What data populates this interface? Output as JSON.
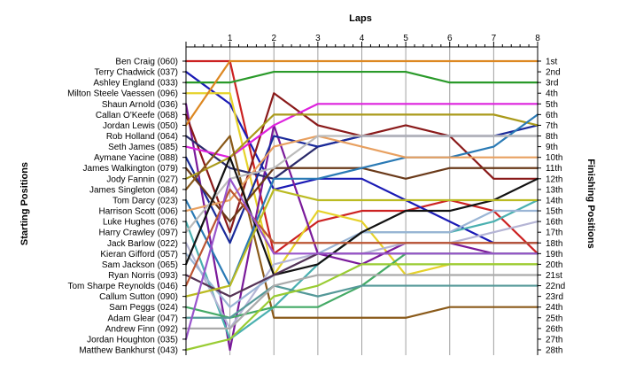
{
  "chart_data": {
    "type": "line",
    "title": "",
    "xlabel": "Laps",
    "ylabel_left": "Starting Positions",
    "ylabel_right": "Finishing Positions",
    "x_ticks": [
      "1",
      "2",
      "3",
      "4",
      "5",
      "6",
      "7",
      "8"
    ],
    "x_range": [
      0,
      8
    ],
    "y_range": [
      1,
      28
    ],
    "y_reversed": true,
    "grid": true,
    "starting_labels": [
      "Ben Craig (060)",
      "Terry Chadwick (037)",
      "Ashley England (033)",
      "Milton Steele Vaessen (096)",
      "Shaun Arnold (036)",
      "Callan O'Keefe (068)",
      "Jordan Lewis (050)",
      "Rob Holland (064)",
      "Seth James (085)",
      "Aymane Yacine (088)",
      "James Walkington (079)",
      "Jody Fannin (027)",
      "James Singleton (084)",
      "Tom Darcy (023)",
      "Harrison Scott (006)",
      "Luke Hughes (076)",
      "Harry Crawley (097)",
      "Jack Barlow (022)",
      "Kieran Gifford (057)",
      "Sam Jackson (065)",
      "Ryan Norris (093)",
      "Tom Sharpe Reynolds (046)",
      "Callum Sutton (090)",
      "Sam Peggs (024)",
      "Adam Glear (047)",
      "Andrew Finn (092)",
      "Jordan Houghton (035)",
      "Matthew Bankhurst (043)"
    ],
    "finishing_labels": [
      "1st",
      "2nd",
      "3rd",
      "4th",
      "5th",
      "6th",
      "7th",
      "8th",
      "9th",
      "10th",
      "11th",
      "12th",
      "13th",
      "14th",
      "15th",
      "16th",
      "17th",
      "18th",
      "19th",
      "20th",
      "21st",
      "22nd",
      "23rd",
      "24th",
      "25th",
      "26th",
      "27th",
      "28th"
    ],
    "series": [
      {
        "color": "#cc2222",
        "values": [
          1,
          1,
          19,
          16,
          15,
          15,
          14,
          15,
          19
        ]
      },
      {
        "color": "#1a1ab5",
        "values": [
          2,
          5,
          13,
          12,
          12,
          14,
          16,
          18,
          18
        ]
      },
      {
        "color": "#2a9a2a",
        "values": [
          3,
          3,
          2,
          2,
          2,
          2,
          3,
          3,
          3
        ]
      },
      {
        "color": "#e6d22a",
        "values": [
          4,
          4,
          21,
          15,
          16,
          21,
          20,
          20,
          20
        ]
      },
      {
        "color": "#7a1a9a",
        "values": [
          5,
          28,
          7,
          19,
          20,
          18,
          18,
          19,
          19
        ]
      },
      {
        "color": "#8a1a1a",
        "values": [
          6,
          17,
          4,
          7,
          8,
          7,
          8,
          12,
          12
        ]
      },
      {
        "color": "#dd8822",
        "values": [
          7,
          1,
          1,
          1,
          1,
          1,
          1,
          1,
          1
        ]
      },
      {
        "color": "#2a2a6a",
        "values": [
          8,
          11,
          12,
          9,
          8,
          8,
          8,
          8,
          8
        ]
      },
      {
        "color": "#dd22dd",
        "values": [
          9,
          10,
          7,
          5,
          5,
          5,
          5,
          5,
          5
        ]
      },
      {
        "color": "#1a2a9a",
        "values": [
          10,
          18,
          8,
          9,
          8,
          8,
          8,
          8,
          7
        ]
      },
      {
        "color": "#6a3a1a",
        "values": [
          11,
          16,
          11,
          11,
          11,
          12,
          11,
          11,
          11
        ]
      },
      {
        "color": "#aa9a1a",
        "values": [
          12,
          10,
          6,
          6,
          6,
          6,
          6,
          6,
          7
        ]
      },
      {
        "color": "#8a5a1a",
        "values": [
          13,
          8,
          25,
          25,
          25,
          25,
          24,
          24,
          24
        ]
      },
      {
        "color": "#2a7ab5",
        "values": [
          14,
          22,
          12,
          12,
          11,
          10,
          10,
          9,
          6
        ]
      },
      {
        "color": "#e8a060",
        "values": [
          15,
          14,
          9,
          8,
          9,
          10,
          10,
          10,
          10
        ]
      },
      {
        "color": "#4ab0b0",
        "values": [
          16,
          27,
          24,
          20,
          17,
          17,
          17,
          16,
          14
        ]
      },
      {
        "color": "#bbbbbb",
        "values": [
          17,
          12,
          11,
          8,
          8,
          8,
          8,
          8,
          8
        ]
      },
      {
        "color": "#b5b5d5",
        "values": [
          18,
          26,
          20,
          19,
          19,
          18,
          18,
          17,
          16
        ]
      },
      {
        "color": "#9ab5d5",
        "values": [
          19,
          24,
          21,
          19,
          17,
          17,
          17,
          15,
          15
        ]
      },
      {
        "color": "#111111",
        "values": [
          20,
          10,
          21,
          20,
          17,
          15,
          15,
          14,
          12
        ]
      },
      {
        "color": "#553355",
        "values": [
          21,
          23,
          21,
          19,
          19,
          19,
          19,
          19,
          19
        ]
      },
      {
        "color": "#bb5533",
        "values": [
          22,
          13,
          18,
          18,
          18,
          18,
          18,
          18,
          18
        ]
      },
      {
        "color": "#bbbb22",
        "values": [
          23,
          22,
          13,
          14,
          14,
          14,
          14,
          14,
          14
        ]
      },
      {
        "color": "#44aa66",
        "values": [
          24,
          25,
          24,
          24,
          22,
          19,
          19,
          19,
          19
        ]
      },
      {
        "color": "#559999",
        "values": [
          25,
          25,
          22,
          23,
          22,
          22,
          22,
          22,
          22
        ]
      },
      {
        "color": "#aaaaaa",
        "values": [
          26,
          26,
          22,
          21,
          21,
          21,
          21,
          21,
          21
        ]
      },
      {
        "color": "#9955cc",
        "values": [
          27,
          12,
          19,
          19,
          19,
          19,
          19,
          19,
          19
        ]
      },
      {
        "color": "#99cc33",
        "values": [
          28,
          27,
          23,
          22,
          20,
          20,
          20,
          20,
          20
        ]
      }
    ]
  }
}
